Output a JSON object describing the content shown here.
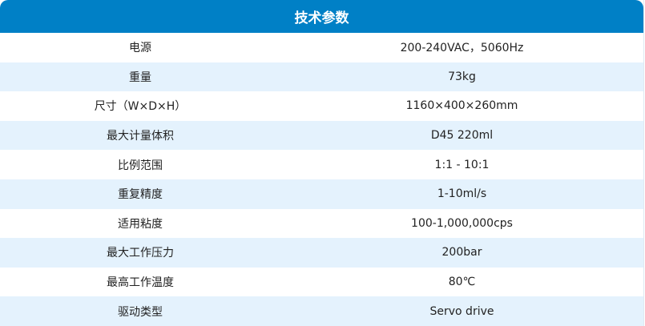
{
  "title": "技术参数",
  "colors": {
    "header": "#0080c6",
    "stripe": "#e4f2fd"
  },
  "rows": [
    {
      "label": "电源",
      "value": "200-240VAC，5060Hz"
    },
    {
      "label": "重量",
      "value": "73kg"
    },
    {
      "label": "尺寸（W×D×H）",
      "value": "1160×400×260mm"
    },
    {
      "label": "最大计量体积",
      "value": "D45 220ml"
    },
    {
      "label": "比例范围",
      "value": "1:1 - 10:1"
    },
    {
      "label": "重复精度",
      "value": "1-10ml/s"
    },
    {
      "label": "适用粘度",
      "value": "100-1,000,000cps"
    },
    {
      "label": "最大工作压力",
      "value": "200bar"
    },
    {
      "label": "最高工作温度",
      "value": "80℃"
    },
    {
      "label": "驱动类型",
      "value": "Servo drive"
    }
  ]
}
